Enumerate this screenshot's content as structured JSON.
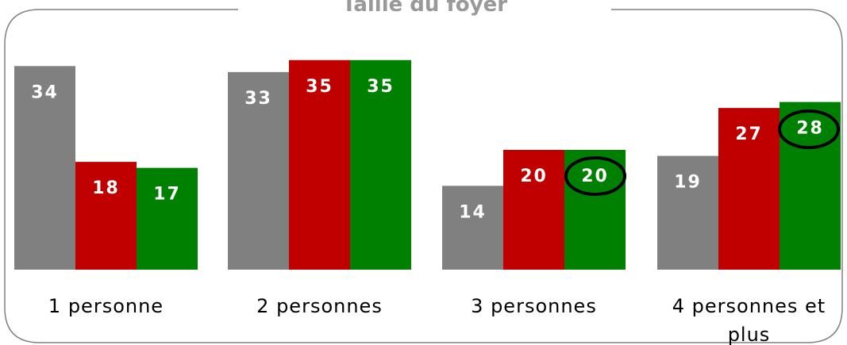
{
  "chart_data": {
    "type": "bar",
    "title": "Taille du foyer",
    "categories": [
      "1 personne",
      "2 personnes",
      "3 personnes",
      "4 personnes et plus"
    ],
    "series": [
      {
        "color": "#808080",
        "values": [
          34,
          33,
          14,
          19
        ]
      },
      {
        "color": "#c00000",
        "values": [
          18,
          35,
          20,
          27
        ]
      },
      {
        "color": "#008000",
        "values": [
          17,
          35,
          20,
          28
        ]
      }
    ]
  }
}
